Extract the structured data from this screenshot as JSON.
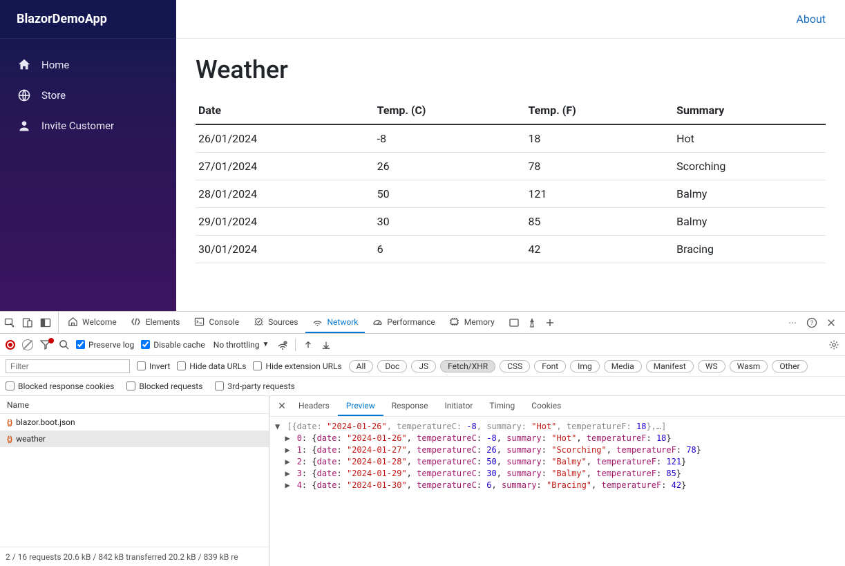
{
  "app": {
    "brand": "BlazorDemoApp",
    "about": "About",
    "nav": [
      {
        "label": "Home",
        "icon": "home"
      },
      {
        "label": "Store",
        "icon": "globe"
      },
      {
        "label": "Invite Customer",
        "icon": "person"
      }
    ],
    "page_title": "Weather",
    "weather_table": {
      "columns": [
        "Date",
        "Temp. (C)",
        "Temp. (F)",
        "Summary"
      ],
      "rows": [
        [
          "26/01/2024",
          "-8",
          "18",
          "Hot"
        ],
        [
          "27/01/2024",
          "26",
          "78",
          "Scorching"
        ],
        [
          "28/01/2024",
          "50",
          "121",
          "Balmy"
        ],
        [
          "29/01/2024",
          "30",
          "85",
          "Balmy"
        ],
        [
          "30/01/2024",
          "6",
          "42",
          "Bracing"
        ]
      ]
    }
  },
  "devtools": {
    "tabs": [
      "Welcome",
      "Elements",
      "Console",
      "Sources",
      "Network",
      "Performance",
      "Memory"
    ],
    "active_tab": "Network",
    "toolbar": {
      "preserve_log_label": "Preserve log",
      "preserve_log_checked": true,
      "disable_cache_label": "Disable cache",
      "disable_cache_checked": true,
      "throttling": "No throttling"
    },
    "filterbar": {
      "filter_placeholder": "Filter",
      "invert_label": "Invert",
      "hide_data_urls_label": "Hide data URLs",
      "hide_ext_urls_label": "Hide extension URLs",
      "pills": [
        "All",
        "Doc",
        "JS",
        "Fetch/XHR",
        "CSS",
        "Font",
        "Img",
        "Media",
        "Manifest",
        "WS",
        "Wasm",
        "Other"
      ],
      "active_pill": "Fetch/XHR"
    },
    "filterbar2": {
      "blocked_cookies_label": "Blocked response cookies",
      "blocked_requests_label": "Blocked requests",
      "third_party_label": "3rd-party requests"
    },
    "requests": {
      "header": "Name",
      "items": [
        {
          "name": "blazor.boot.json",
          "selected": false
        },
        {
          "name": "weather",
          "selected": true
        }
      ],
      "footer": "2 / 16 requests   20.6 kB / 842 kB transferred   20.2 kB / 839 kB re"
    },
    "detail": {
      "tabs": [
        "Headers",
        "Preview",
        "Response",
        "Initiator",
        "Timing",
        "Cookies"
      ],
      "active": "Preview",
      "summary_prefix": "[{date: ",
      "summary_date": "\"2024-01-26\"",
      "summary_mid1": ", temperatureC: ",
      "summary_tc": "-8",
      "summary_mid2": ", summary: ",
      "summary_sum": "\"Hot\"",
      "summary_mid3": ", temperatureF: ",
      "summary_tf": "18",
      "summary_suffix": "},…]",
      "items": [
        {
          "idx": "0",
          "date": "\"2024-01-26\"",
          "tc": "-8",
          "sum": "\"Hot\"",
          "tf": "18"
        },
        {
          "idx": "1",
          "date": "\"2024-01-27\"",
          "tc": "26",
          "sum": "\"Scorching\"",
          "tf": "78"
        },
        {
          "idx": "2",
          "date": "\"2024-01-28\"",
          "tc": "50",
          "sum": "\"Balmy\"",
          "tf": "121"
        },
        {
          "idx": "3",
          "date": "\"2024-01-29\"",
          "tc": "30",
          "sum": "\"Balmy\"",
          "tf": "85"
        },
        {
          "idx": "4",
          "date": "\"2024-01-30\"",
          "tc": "6",
          "sum": "\"Bracing\"",
          "tf": "42"
        }
      ]
    }
  },
  "colors": {
    "sidebar_top": "#141650",
    "sidebar_bottom": "#3d1460",
    "link": "#1b6ec2",
    "devtools_active": "#0078d4",
    "json_key": "#a31a6d",
    "json_string": "#c41a16",
    "json_number": "#1c00cf"
  }
}
